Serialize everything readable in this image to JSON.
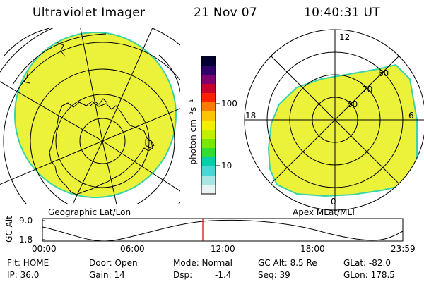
{
  "header": {
    "title": "Ultraviolet Imager",
    "date": "21 Nov 07",
    "time": "10:40:31 UT"
  },
  "left_map": {
    "caption": "Geographic Lat/Lon"
  },
  "right_map": {
    "caption": "Apex MLat/MLT",
    "mlat_labels": [
      "60",
      "70",
      "80"
    ],
    "mlt_labels": [
      "12",
      "18",
      "6",
      "0"
    ]
  },
  "colorbar": {
    "unit_label": "photon cm⁻²s⁻¹",
    "tick_labels": [
      "100",
      "10"
    ],
    "scale": "log",
    "colors": [
      "#000030",
      "#30006a",
      "#7e006e",
      "#c8002d",
      "#ff2000",
      "#ff7a00",
      "#ffc500",
      "#f2f000",
      "#c2ee00",
      "#78e800",
      "#30de30",
      "#00cfa8",
      "#48d6d6",
      "#a8e6e6",
      "#e8f4f4"
    ]
  },
  "fill_colors": {
    "image_fill": "#ecf23a",
    "image_edge": "#38d4a8"
  },
  "timeline": {
    "ylabel": "GC Alt",
    "y_ticks": [
      "9.0",
      "1.8"
    ],
    "x_ticks": [
      "00:00",
      "06:00",
      "12:00",
      "18:00",
      "23:59"
    ],
    "cursor_time": "10:40:31",
    "cursor_color": "#d00000"
  },
  "status": {
    "flt": "Flt: HOME",
    "door": "Door: Open",
    "mode": "Mode: Normal",
    "gc_alt": "GC Alt: 8.5 Re",
    "glat": "GLat: -82.0",
    "ip": "IP: 36.0",
    "gain": "Gain: 14",
    "dsp_label": "Dsp:",
    "dsp_value": "-1.4",
    "seq": "Seq: 39",
    "glon": "GLon: 178.5"
  }
}
